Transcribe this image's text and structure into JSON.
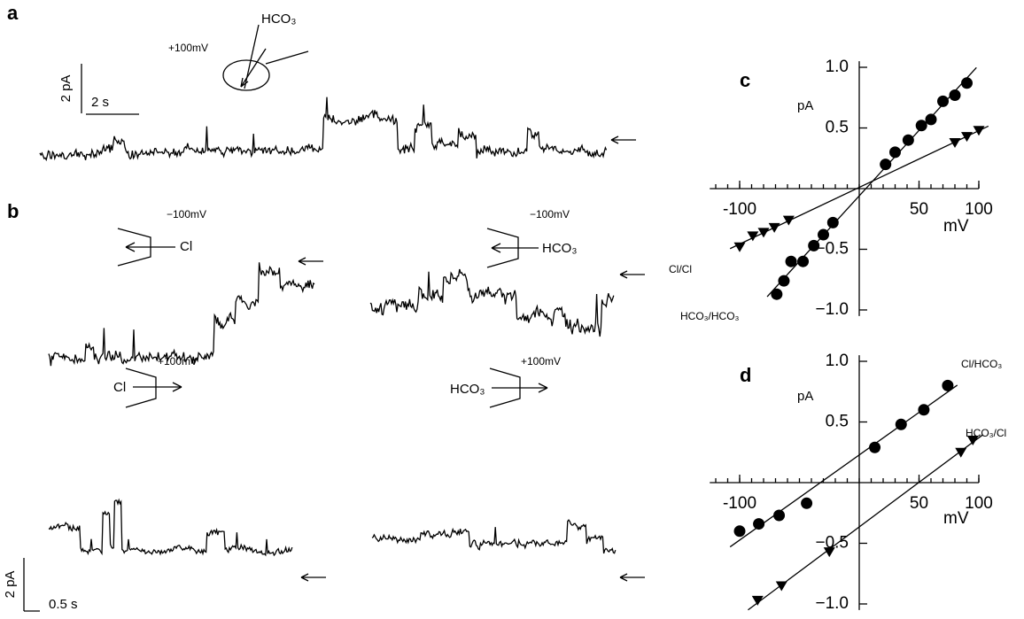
{
  "panel_a": {
    "label": "a",
    "voltage": "+100mV",
    "ion": "HCO₃",
    "scale_current": "2 pA",
    "scale_time": "2 s"
  },
  "panel_b": {
    "label": "b",
    "traces": [
      {
        "voltage": "−100mV",
        "ion": "Cl"
      },
      {
        "voltage": "−100mV",
        "ion": "HCO₃"
      },
      {
        "voltage": "+100mV",
        "ion": "Cl"
      },
      {
        "voltage": "+100mV",
        "ion": "HCO₃"
      }
    ],
    "scale_current": "2 pA",
    "scale_time": "0.5 s"
  },
  "chart_data": [
    {
      "type": "scatter",
      "label": "c",
      "ylabel": "pA",
      "xlabel": "mV",
      "xlim": [
        -125,
        100
      ],
      "ylim": [
        -1.05,
        1.05
      ],
      "xticks": [
        -100,
        50,
        100
      ],
      "yticks": [
        {
          "value": 1.0,
          "label": "1.0"
        },
        {
          "value": 0.5,
          "label": "0.5"
        },
        {
          "value": -0.5,
          "label": "−0.5"
        },
        {
          "value": -1.0,
          "label": "−1.0"
        }
      ],
      "series": [
        {
          "name": "Cl/Cl",
          "color": "#000000",
          "marker": "circle",
          "x": [
            -69,
            -63,
            -57,
            -47,
            -38,
            -30,
            -22,
            22,
            30,
            41,
            52,
            60,
            70,
            80,
            90
          ],
          "values": [
            -0.87,
            -0.76,
            -0.6,
            -0.6,
            -0.47,
            -0.38,
            -0.28,
            0.2,
            0.3,
            0.4,
            0.52,
            0.57,
            0.72,
            0.77,
            0.87
          ]
        },
        {
          "name": "HCO₃/HCO₃",
          "color": "#000000",
          "marker": "triangle",
          "x": [
            -100,
            -89,
            -80,
            -71,
            -59,
            80,
            90,
            100
          ],
          "values": [
            -0.48,
            -0.39,
            -0.36,
            -0.32,
            -0.26,
            0.38,
            0.43,
            0.48
          ]
        }
      ]
    },
    {
      "type": "scatter",
      "label": "d",
      "ylabel": "pA",
      "xlabel": "mV",
      "xlim": [
        -125,
        100
      ],
      "ylim": [
        -1.05,
        1.05
      ],
      "xticks": [
        -100,
        50,
        100
      ],
      "yticks": [
        {
          "value": 1.0,
          "label": "1.0"
        },
        {
          "value": 0.5,
          "label": "0.5"
        },
        {
          "value": -0.5,
          "label": "−0.5"
        },
        {
          "value": -1.0,
          "label": "−1.0"
        }
      ],
      "series": [
        {
          "name": "Cl/HCO₃",
          "color": "#000000",
          "marker": "circle",
          "x": [
            -100,
            -84,
            -67,
            -44,
            13,
            35,
            54,
            74
          ],
          "values": [
            -0.4,
            -0.34,
            -0.27,
            -0.17,
            0.29,
            0.48,
            0.6,
            0.8
          ]
        },
        {
          "name": "HCO₃/Cl",
          "color": "#000000",
          "marker": "triangle",
          "x": [
            -85,
            -65,
            -25,
            85,
            95
          ],
          "values": [
            -0.97,
            -0.85,
            -0.57,
            0.25,
            0.35
          ]
        }
      ]
    }
  ]
}
